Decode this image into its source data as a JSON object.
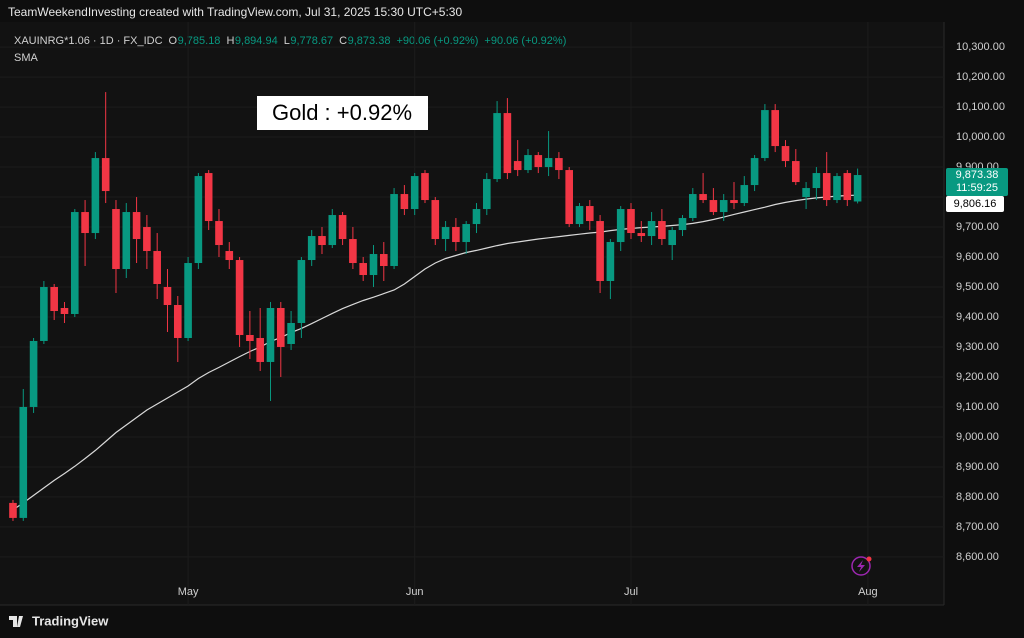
{
  "chart_data": {
    "type": "candlestick",
    "header": "TeamWeekendInvesting created with TradingView.com, Jul 31, 2025 15:30 UTC+5:30",
    "legend": {
      "symbol": "XAUINRG*1.06 · 1D · FX_IDC",
      "o": "O",
      "open": "9,785.18",
      "h": "H",
      "high": "9,894.94",
      "l": "L",
      "low": "9,778.67",
      "c": "C",
      "close": "9,873.38",
      "change": "+90.06 (+0.92%)",
      "change_2": "+90.06 (+0.92%)",
      "indicator": "SMA"
    },
    "annotation": "Gold : +0.92%",
    "price_tag": "9,873.38",
    "countdown": "11:59:25",
    "sma_tag": "9,806.16",
    "footer": "TradingView",
    "up_color": "#089981",
    "down_color": "#f23645",
    "sma_color": "#d9d9d9",
    "open": [
      8780,
      8730,
      9100,
      9320,
      9500,
      9430,
      9410,
      9750,
      9680,
      9930,
      9760,
      9560,
      9750,
      9700,
      9620,
      9500,
      9440,
      9330,
      9580,
      9880,
      9720,
      9620,
      9590,
      9340,
      9330,
      9250,
      9430,
      9310,
      9380,
      9590,
      9670,
      9640,
      9740,
      9660,
      9580,
      9540,
      9610,
      9570,
      9810,
      9760,
      9880,
      9790,
      9660,
      9700,
      9650,
      9710,
      9760,
      9860,
      10080,
      9920,
      9890,
      9940,
      9900,
      9930,
      9890,
      9710,
      9770,
      9720,
      9520,
      9650,
      9760,
      9680,
      9670,
      9720,
      9640,
      9690,
      9730,
      9810,
      9790,
      9750,
      9790,
      9780,
      9840,
      9930,
      10090,
      9970,
      9920,
      9800,
      9830,
      9880,
      9790,
      9880,
      9785.18
    ],
    "high": [
      8790,
      9160,
      9330,
      9520,
      9510,
      9450,
      9760,
      9790,
      9950,
      10150,
      9790,
      9780,
      9800,
      9740,
      9680,
      9560,
      9470,
      9600,
      9880,
      9890,
      9760,
      9650,
      9600,
      9420,
      9430,
      9450,
      9450,
      9420,
      9600,
      9690,
      9700,
      9760,
      9750,
      9700,
      9600,
      9640,
      9650,
      9830,
      9840,
      9880,
      9890,
      9800,
      9720,
      9730,
      9720,
      9780,
      9880,
      10120,
      10130,
      9990,
      9960,
      9950,
      10020,
      9950,
      9900,
      9780,
      9790,
      9740,
      9660,
      9770,
      9780,
      9720,
      9750,
      9760,
      9700,
      9740,
      9830,
      9880,
      9830,
      9810,
      9850,
      9870,
      9940,
      10110,
      10110,
      9990,
      9960,
      9850,
      9900,
      9950,
      9880,
      9890,
      9894.94
    ],
    "low": [
      8720,
      8720,
      9080,
      9310,
      9390,
      9380,
      9400,
      9570,
      9660,
      9780,
      9480,
      9530,
      9580,
      9560,
      9460,
      9350,
      9250,
      9320,
      9560,
      9690,
      9600,
      9560,
      9300,
      9260,
      9220,
      9120,
      9200,
      9290,
      9330,
      9570,
      9610,
      9630,
      9640,
      9560,
      9520,
      9500,
      9520,
      9560,
      9740,
      9740,
      9780,
      9640,
      9620,
      9620,
      9610,
      9680,
      9740,
      9850,
      9860,
      9870,
      9880,
      9880,
      9870,
      9860,
      9700,
      9700,
      9690,
      9480,
      9460,
      9620,
      9660,
      9650,
      9640,
      9640,
      9590,
      9670,
      9720,
      9780,
      9740,
      9720,
      9760,
      9770,
      9820,
      9920,
      9950,
      9900,
      9840,
      9760,
      9790,
      9770,
      9780,
      9770,
      9778.67
    ],
    "close": [
      8730,
      9100,
      9320,
      9500,
      9420,
      9410,
      9750,
      9680,
      9930,
      9820,
      9560,
      9750,
      9660,
      9620,
      9510,
      9440,
      9330,
      9580,
      9870,
      9720,
      9640,
      9590,
      9340,
      9320,
      9250,
      9430,
      9300,
      9380,
      9590,
      9670,
      9640,
      9740,
      9660,
      9580,
      9540,
      9610,
      9570,
      9810,
      9760,
      9870,
      9790,
      9660,
      9700,
      9650,
      9710,
      9760,
      9860,
      10080,
      9880,
      9890,
      9940,
      9900,
      9930,
      9890,
      9710,
      9770,
      9720,
      9520,
      9650,
      9760,
      9680,
      9670,
      9720,
      9660,
      9690,
      9730,
      9810,
      9790,
      9750,
      9790,
      9780,
      9840,
      9930,
      10090,
      9970,
      9920,
      9850,
      9830,
      9880,
      9790,
      9870,
      9790,
      9873.38
    ],
    "sma": [
      8757,
      8780,
      8805,
      8830,
      8855,
      8878,
      8902,
      8928,
      8955,
      8985,
      9015,
      9040,
      9065,
      9090,
      9110,
      9130,
      9150,
      9170,
      9195,
      9215,
      9232,
      9250,
      9268,
      9285,
      9300,
      9318,
      9332,
      9348,
      9362,
      9378,
      9395,
      9412,
      9428,
      9442,
      9455,
      9466,
      9478,
      9490,
      9510,
      9535,
      9560,
      9580,
      9595,
      9605,
      9615,
      9622,
      9630,
      9638,
      9645,
      9650,
      9655,
      9660,
      9664,
      9668,
      9672,
      9676,
      9680,
      9683,
      9688,
      9692,
      9695,
      9698,
      9700,
      9702,
      9705,
      9708,
      9712,
      9718,
      9725,
      9733,
      9742,
      9750,
      9758,
      9766,
      9775,
      9782,
      9788,
      9793,
      9797,
      9800,
      9803,
      9805,
      9806.16
    ],
    "sma_value": 9806.16,
    "xlim": [
      -1.26,
      90
    ],
    "xticks": [
      {
        "value": 17,
        "label": "May"
      },
      {
        "value": 39,
        "label": "Jun"
      },
      {
        "value": 60,
        "label": "Jul"
      },
      {
        "value": 83,
        "label": "Aug"
      }
    ],
    "ylim": [
      8523,
      10357
    ],
    "yticks": [
      {
        "value": 8600,
        "label": "8,600.00"
      },
      {
        "value": 8700,
        "label": "8,700.00"
      },
      {
        "value": 8800,
        "label": "8,800.00"
      },
      {
        "value": 8900,
        "label": "8,900.00"
      },
      {
        "value": 9000,
        "label": "9,000.00"
      },
      {
        "value": 9100,
        "label": "9,100.00"
      },
      {
        "value": 9200,
        "label": "9,200.00"
      },
      {
        "value": 9300,
        "label": "9,300.00"
      },
      {
        "value": 9400,
        "label": "9,400.00"
      },
      {
        "value": 9500,
        "label": "9,500.00"
      },
      {
        "value": 9600,
        "label": "9,600.00"
      },
      {
        "value": 9700,
        "label": "9,700.00"
      },
      {
        "value": 9800,
        "label": "9,800.00"
      },
      {
        "value": 9900,
        "label": "9,900.00"
      },
      {
        "value": 10000,
        "label": "10,000.00"
      },
      {
        "value": 10100,
        "label": "10,100.00"
      },
      {
        "value": 10200,
        "label": "10,200.00"
      },
      {
        "value": 10300,
        "label": "10,300.00"
      }
    ],
    "grid": true
  }
}
